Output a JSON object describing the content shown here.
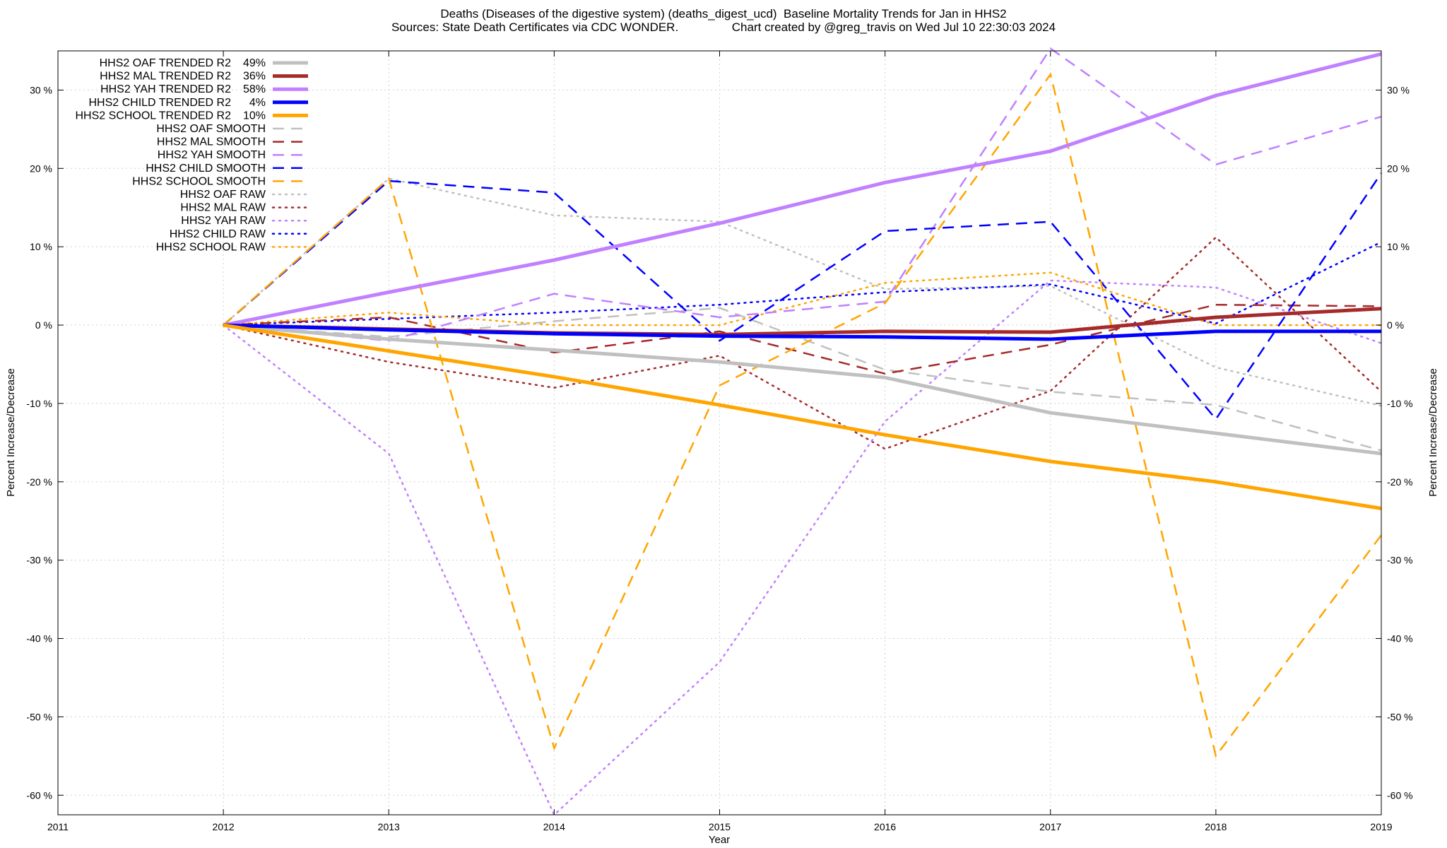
{
  "chart_data": {
    "type": "line",
    "title_line1": "Deaths (Diseases of the digestive system) (deaths_digest_ucd)  Baseline Mortality Trends for Jan in HHS2",
    "title_line2": "Sources: State Death Certificates via CDC WONDER.                Chart created by @greg_travis on Wed Jul 10 22:30:03 2024",
    "xlabel": "Year",
    "ylabel_left": "Percent Increase/Decrease",
    "ylabel_right": "Percent Increase/Decrease",
    "xlim": [
      2011,
      2019
    ],
    "ylim": [
      -62.5,
      35
    ],
    "x_ticks": [
      2011,
      2012,
      2013,
      2014,
      2015,
      2016,
      2017,
      2018,
      2019
    ],
    "x_tick_labels": [
      "2011",
      "2012",
      "2013",
      "2014",
      "2015",
      "2016",
      "2017",
      "2018",
      "2019"
    ],
    "y_ticks": [
      30,
      20,
      10,
      0,
      -10,
      -20,
      -30,
      -40,
      -50,
      -60
    ],
    "y_tick_labels": [
      "30 %",
      "20 %",
      "10 %",
      "0 %",
      "-10 %",
      "-20 %",
      "-30 %",
      "-40 %",
      "-50 %",
      "-60 %"
    ],
    "grid": true,
    "legend_position": "top-left",
    "x": [
      2012,
      2013,
      2014,
      2015,
      2016,
      2017,
      2018,
      2019
    ],
    "series": [
      {
        "name": "HHS2 OAF TRENDED R2",
        "r2": "49%",
        "style": "solid",
        "width": 5,
        "color": "#c0c0c0",
        "values": [
          0,
          -1.8,
          -3.2,
          -4.7,
          -6.7,
          -11.2,
          -13.8,
          -16.4
        ]
      },
      {
        "name": "HHS2 MAL TRENDED R2",
        "r2": "36%",
        "style": "solid",
        "width": 5,
        "color": "#a52a2a",
        "values": [
          0,
          -0.5,
          -1,
          -1.2,
          -0.8,
          -0.9,
          1,
          2.1
        ]
      },
      {
        "name": "HHS2 YAH TRENDED R2",
        "r2": "58%",
        "style": "solid",
        "width": 5,
        "color": "#c080ff",
        "values": [
          0,
          4.2,
          8.3,
          13,
          18.2,
          22.2,
          29.3,
          34.6
        ]
      },
      {
        "name": "HHS2 CHILD TRENDED R2",
        "r2": "4%",
        "style": "solid",
        "width": 5,
        "color": "#0000ff",
        "values": [
          0,
          -0.6,
          -1.1,
          -1.4,
          -1.5,
          -1.8,
          -0.8,
          -0.8
        ]
      },
      {
        "name": "HHS2 SCHOOL TRENDED R2",
        "r2": "10%",
        "style": "solid",
        "width": 5,
        "color": "#ffa500",
        "values": [
          0,
          -3.3,
          -6.6,
          -10.2,
          -14,
          -17.4,
          -20,
          -23.4
        ]
      },
      {
        "name": "HHS2 OAF SMOOTH",
        "r2": "",
        "style": "dashed",
        "width": 2.5,
        "color": "#c0c0c0",
        "values": [
          0,
          -1.5,
          0.5,
          2.2,
          -5.7,
          -8.5,
          -10.2,
          -16
        ]
      },
      {
        "name": "HHS2 MAL SMOOTH",
        "r2": "",
        "style": "dashed",
        "width": 2.5,
        "color": "#a52a2a",
        "values": [
          0,
          1,
          -3.5,
          -0.8,
          -6.2,
          -2.5,
          2.6,
          2.4
        ]
      },
      {
        "name": "HHS2 YAH SMOOTH",
        "r2": "",
        "style": "dashed",
        "width": 2.5,
        "color": "#c080ff",
        "values": [
          0,
          -2,
          4,
          1,
          3,
          35.3,
          20.5,
          26.6
        ]
      },
      {
        "name": "HHS2 CHILD SMOOTH",
        "r2": "",
        "style": "dashed",
        "width": 2.5,
        "color": "#0000ff",
        "values": [
          0,
          18.4,
          16.9,
          -2,
          12,
          13.2,
          -12,
          19.4
        ]
      },
      {
        "name": "HHS2 SCHOOL SMOOTH",
        "r2": "",
        "style": "dashed",
        "width": 2.5,
        "color": "#ffa500",
        "values": [
          0,
          18.7,
          -54,
          -7.7,
          2.8,
          32,
          -55,
          -26.8
        ]
      },
      {
        "name": "HHS2 OAF RAW",
        "r2": "",
        "style": "dotted",
        "width": 2.5,
        "color": "#c0c0c0",
        "values": [
          0,
          18.7,
          14,
          13.2,
          4.6,
          5,
          -5.4,
          -10.3
        ]
      },
      {
        "name": "HHS2 MAL RAW",
        "r2": "",
        "style": "dotted",
        "width": 2.5,
        "color": "#a52a2a",
        "values": [
          0,
          -4.7,
          -8,
          -3.9,
          -15.8,
          -8.4,
          11.2,
          -8.5
        ]
      },
      {
        "name": "HHS2 YAH RAW",
        "r2": "",
        "style": "dotted",
        "width": 2.5,
        "color": "#c080ff",
        "values": [
          0,
          -16.4,
          -62.5,
          -43,
          -12.3,
          5.7,
          4.8,
          -2.3
        ]
      },
      {
        "name": "HHS2 CHILD RAW",
        "r2": "",
        "style": "dotted",
        "width": 2.5,
        "color": "#0000ff",
        "values": [
          0,
          0.8,
          1.6,
          2.6,
          4.2,
          5.2,
          0.2,
          10.6
        ]
      },
      {
        "name": "HHS2 SCHOOL RAW",
        "r2": "",
        "style": "dotted",
        "width": 2.5,
        "color": "#ffa500",
        "values": [
          0,
          1.6,
          0,
          0,
          5.4,
          6.7,
          0,
          0
        ]
      }
    ]
  }
}
